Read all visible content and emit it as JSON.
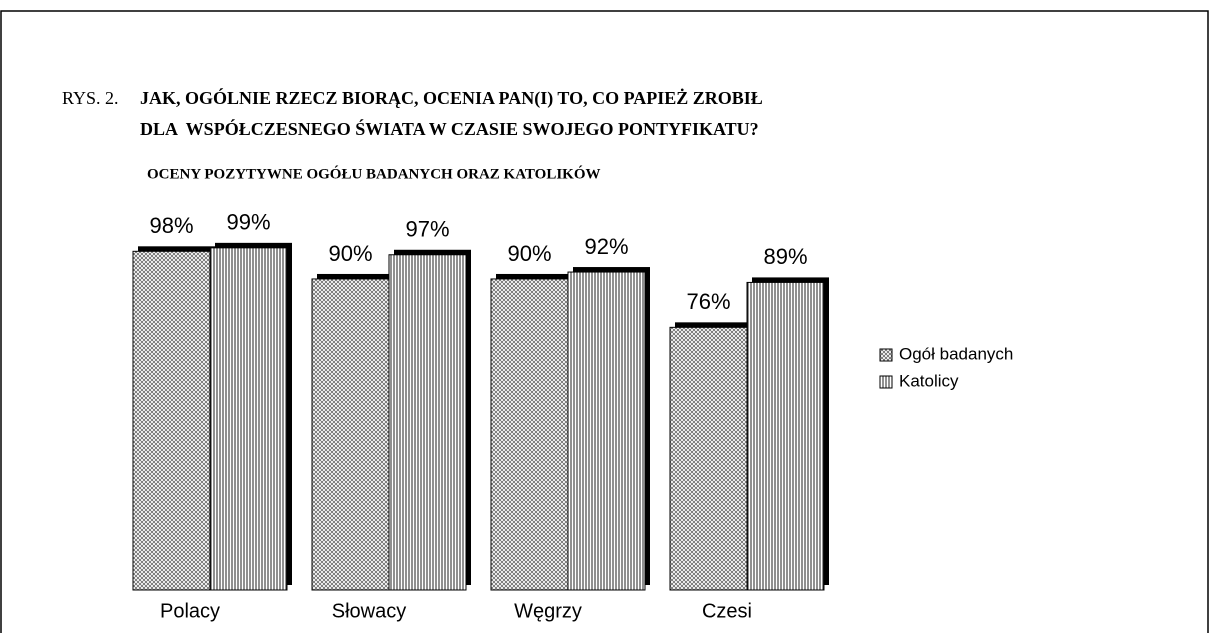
{
  "chart_data": {
    "type": "bar",
    "figure_label": "RYS. 2.",
    "title": [
      "JAK, OGÓLNIE RZECZ BIORĄC, OCENIA PAN(I) TO, CO PAPIEŻ ZROBIŁ",
      "DLA  WSPÓŁCZESNEGO ŚWIATA W CZASIE SWOJEGO PONTYFIKATU?"
    ],
    "subtitle": "OCENY POZYTYWNE OGÓŁU BADANYCH ORAZ KATOLIKÓW",
    "categories": [
      "Polacy",
      "Słowacy",
      "Węgrzy",
      "Czesi"
    ],
    "series": [
      {
        "name": "Ogół badanych",
        "pattern": "crosshatch",
        "values": [
          98,
          90,
          90,
          76
        ],
        "value_labels": [
          "98%",
          "90%",
          "90%",
          "76%"
        ]
      },
      {
        "name": "Katolicy",
        "pattern": "vertical",
        "values": [
          99,
          97,
          92,
          89
        ],
        "value_labels": [
          "99%",
          "97%",
          "92%",
          "89%"
        ]
      }
    ]
  }
}
